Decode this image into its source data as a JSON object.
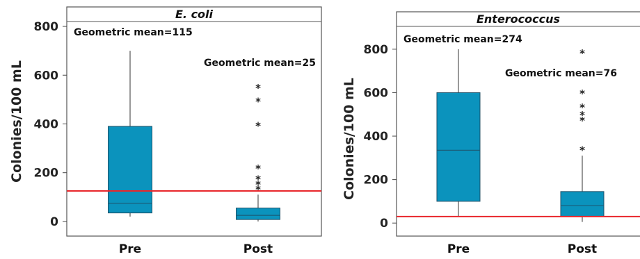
{
  "chart_data": [
    {
      "type": "box",
      "title": "E. coli",
      "ylabel": "Colonies/100 mL",
      "categories": [
        "Pre",
        "Post"
      ],
      "ylim": [
        -60,
        820
      ],
      "yticks": [
        0,
        200,
        400,
        600,
        800
      ],
      "reference_line": 125,
      "boxes": [
        {
          "category": "Pre",
          "whisker_low": 20,
          "q1": 35,
          "median": 75,
          "q3": 390,
          "whisker_high": 700,
          "outliers": []
        },
        {
          "category": "Post",
          "whisker_low": 0,
          "q1": 8,
          "median": 25,
          "q3": 55,
          "whisker_high": 110,
          "outliers": [
            140,
            160,
            180,
            225,
            400,
            500,
            555
          ]
        }
      ],
      "annotations": [
        {
          "text": "Geometric mean=115",
          "category": "Pre"
        },
        {
          "text": "Geometric mean=25",
          "category": "Post"
        }
      ]
    },
    {
      "type": "box",
      "title": "Enterococcus",
      "ylabel": "Colonies/100 mL",
      "categories": [
        "Pre",
        "Post"
      ],
      "ylim": [
        -60,
        905
      ],
      "yticks": [
        0,
        200,
        400,
        600,
        800
      ],
      "reference_line": 30,
      "boxes": [
        {
          "category": "Pre",
          "whisker_low": 30,
          "q1": 100,
          "median": 335,
          "q3": 600,
          "whisker_high": 800,
          "outliers": []
        },
        {
          "category": "Post",
          "whisker_low": 5,
          "q1": 30,
          "median": 80,
          "q3": 145,
          "whisker_high": 310,
          "outliers": [
            345,
            480,
            505,
            540,
            605,
            790
          ]
        }
      ],
      "annotations": [
        {
          "text": "Geometric mean=274",
          "category": "Pre"
        },
        {
          "text": "Geometric mean=76",
          "category": "Post"
        }
      ]
    }
  ],
  "colors": {
    "box_fill": "#0b93bd",
    "box_stroke": "#1f4f66",
    "reference_line": "#e8262b",
    "whisker": "#555555"
  }
}
